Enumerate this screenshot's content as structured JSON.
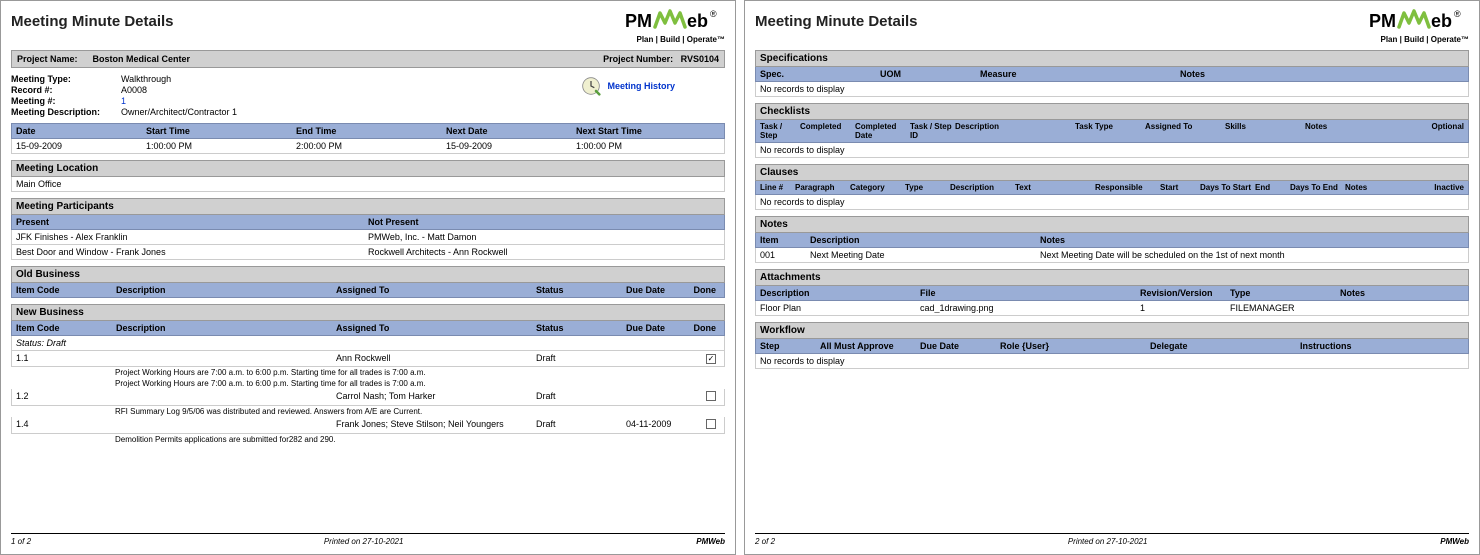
{
  "title": "Meeting Minute Details",
  "logo": {
    "brand_prefix": "PM",
    "brand_suffix": "eb",
    "tagline": "Plan | Build | Operate™"
  },
  "project": {
    "name_label": "Project Name:",
    "name": "Boston Medical Center",
    "number_label": "Project Number:",
    "number": "RVS0104"
  },
  "meta": {
    "type_label": "Meeting Type:",
    "type": "Walkthrough",
    "record_label": "Record #:",
    "record": "A0008",
    "meeting_num_label": "Meeting #:",
    "meeting_num": "1",
    "description_label": "Meeting Description:",
    "description": "Owner/Architect/Contractor 1",
    "history_link": "Meeting History"
  },
  "schedule": {
    "headers": {
      "date": "Date",
      "start": "Start Time",
      "end": "End Time",
      "next_date": "Next Date",
      "next_start": "Next Start Time"
    },
    "row": {
      "date": "15-09-2009",
      "start": "1:00:00 PM",
      "end": "2:00:00 PM",
      "next_date": "15-09-2009",
      "next_start": "1:00:00 PM"
    }
  },
  "location": {
    "title": "Meeting Location",
    "value": "Main Office"
  },
  "participants": {
    "title": "Meeting Participants",
    "present_label": "Present",
    "not_present_label": "Not Present",
    "rows": [
      {
        "present": "JFK Finishes - Alex Franklin",
        "not_present": "PMWeb, Inc. - Matt Damon"
      },
      {
        "present": "Best Door and Window - Frank Jones",
        "not_present": "Rockwell Architects - Ann Rockwell"
      }
    ]
  },
  "business_headers": {
    "item_code": "Item Code",
    "description": "Description",
    "assigned": "Assigned To",
    "status": "Status",
    "due": "Due Date",
    "done": "Done"
  },
  "old_business": {
    "title": "Old Business"
  },
  "new_business": {
    "title": "New Business",
    "status_line": "Status:   Draft",
    "items": [
      {
        "code": "1.1",
        "assigned": "Ann Rockwell",
        "status": "Draft",
        "due": "",
        "done": true,
        "desc_lines": [
          "Project Working Hours are 7:00 a.m. to 6:00 p.m. Starting time for all trades is 7:00 a.m.",
          "Project Working Hours are 7:00 a.m. to 6:00 p.m. Starting time for all trades is 7:00 a.m."
        ]
      },
      {
        "code": "1.2",
        "assigned": "Carrol Nash; Tom Harker",
        "status": "Draft",
        "due": "",
        "done": false,
        "desc_lines": [
          "RFI Summary Log 9/5/06 was distributed and reviewed. Answers from A/E are Current."
        ]
      },
      {
        "code": "1.4",
        "assigned": "Frank Jones; Steve Stilson; Neil Youngers",
        "status": "Draft",
        "due": "04-11-2009",
        "done": false,
        "desc_lines": [
          "Demolition Permits applications are submitted for282 and 290."
        ]
      }
    ]
  },
  "specifications": {
    "title": "Specifications",
    "headers": {
      "spec": "Spec.",
      "uom": "UOM",
      "measure": "Measure",
      "notes": "Notes"
    },
    "no_records": "No records to display"
  },
  "checklists": {
    "title": "Checklists",
    "headers": {
      "task_step": "Task / Step",
      "completed": "Completed",
      "completed_date": "Completed Date",
      "task_step_id": "Task / Step ID",
      "description": "Description",
      "task_type": "Task Type",
      "assigned_to": "Assigned To",
      "skills": "Skills",
      "notes": "Notes",
      "optional": "Optional"
    },
    "no_records": "No records to display"
  },
  "clauses": {
    "title": "Clauses",
    "headers": {
      "line": "Line #",
      "paragraph": "Paragraph",
      "category": "Category",
      "type": "Type",
      "description": "Description",
      "text": "Text",
      "responsible": "Responsible",
      "start": "Start",
      "days_start": "Days To Start",
      "end": "End",
      "days_end": "Days To End",
      "notes": "Notes",
      "inactive": "Inactive"
    },
    "no_records": "No records to display"
  },
  "notes": {
    "title": "Notes",
    "headers": {
      "item": "Item",
      "description": "Description",
      "notes": "Notes"
    },
    "rows": [
      {
        "item": "001",
        "description": "Next Meeting Date",
        "notes_text": "Next Meeting Date will be scheduled on the 1st of next month"
      }
    ]
  },
  "attachments": {
    "title": "Attachments",
    "headers": {
      "description": "Description",
      "file": "File",
      "revision": "Revision/Version",
      "type": "Type",
      "notes": "Notes"
    },
    "rows": [
      {
        "description": "Floor Plan",
        "file": "cad_1drawing.png",
        "revision": "1",
        "type": "FILEMANAGER",
        "notes_text": ""
      }
    ]
  },
  "workflow": {
    "title": "Workflow",
    "headers": {
      "step": "Step",
      "approve": "All Must Approve",
      "due": "Due Date",
      "role": "Role {User}",
      "delegate": "Delegate",
      "instructions": "Instructions"
    },
    "no_records": "No records to display"
  },
  "footer": {
    "page1": "1 of 2",
    "page2": "2 of 2",
    "printed": "Printed on 27-10-2021",
    "brand": "PMWeb"
  },
  "colors": {
    "grey_header": "#d0d0d0",
    "blue_header": "#9aaed6",
    "logo_green": "#7fbf3f",
    "link_blue": "#0033cc"
  }
}
